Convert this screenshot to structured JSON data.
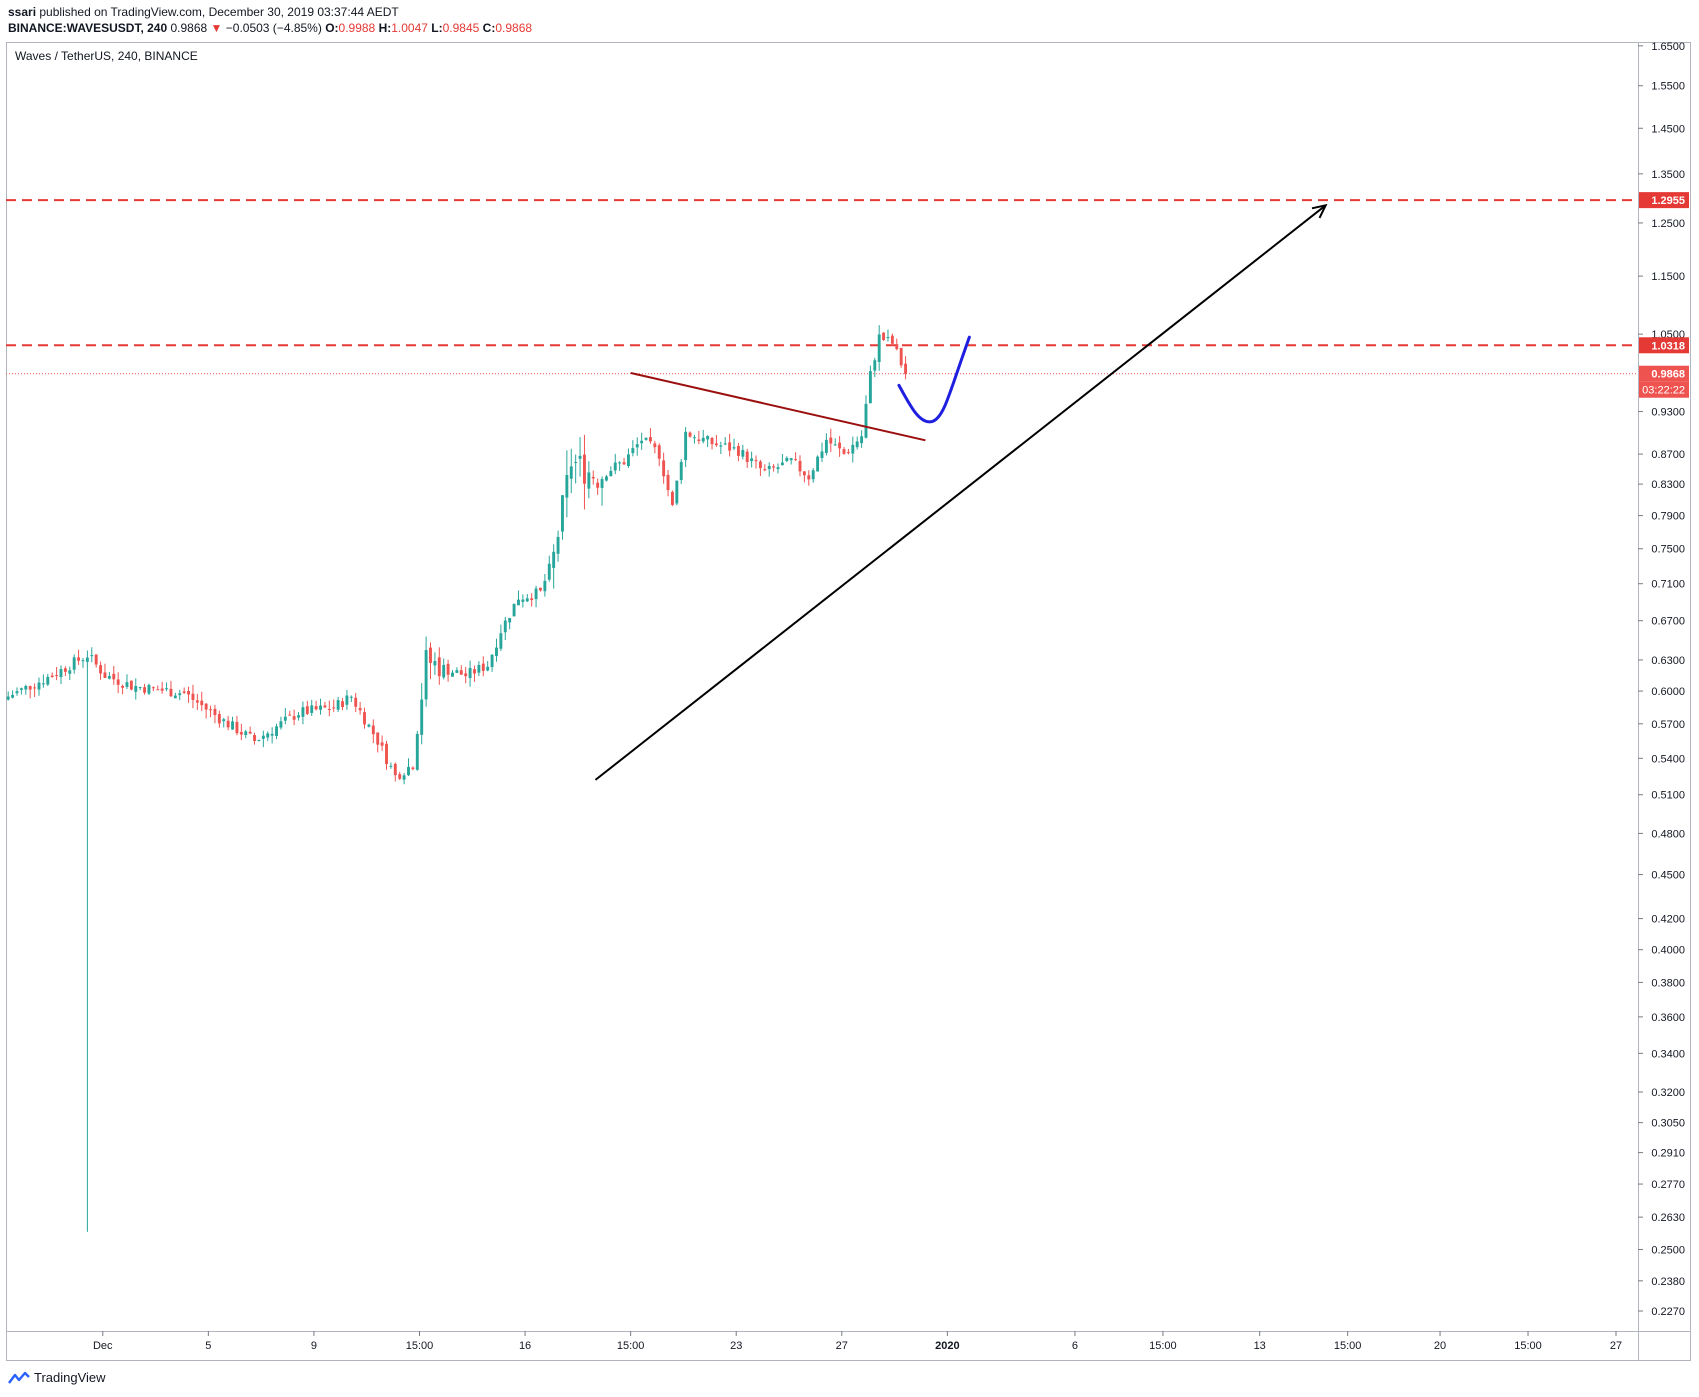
{
  "header": {
    "author": "ssari",
    "published_text": "published on TradingView.com, December 30, 2019 03:37:44 AEDT",
    "symbol_line": "BINANCE:WAVESUSDT, 240",
    "last": "0.9868",
    "change_arrow": "▼",
    "change": "−0.0503 (−4.85%)",
    "o_label": "O:",
    "o": "0.9988",
    "h_label": "H:",
    "h": "1.0047",
    "l_label": "L:",
    "l": "0.9845",
    "c_label": "C:",
    "c": "0.9868"
  },
  "legend_title": "Waves / TetherUS, 240, BINANCE",
  "footer": {
    "brand": "TradingView",
    "icon": "tradingview-logo-icon"
  },
  "colors": {
    "up": "#26a69a",
    "down": "#ef5350",
    "level_line": "#e53935",
    "trend_line": "#9b0f0f",
    "arrow": "#000000",
    "projection": "#1f1fe0",
    "axis_text": "#131722",
    "current_label_bg": "#ef5350"
  },
  "chart_data": {
    "type": "candlestick",
    "scale": "log",
    "ylim": [
      0.22,
      1.66
    ],
    "y_ticks": [
      "1.6500",
      "1.5500",
      "1.4500",
      "1.3500",
      "1.2500",
      "1.1500",
      "1.0500",
      "0.9300",
      "0.8700",
      "0.8300",
      "0.7900",
      "0.7500",
      "0.7100",
      "0.6700",
      "0.6300",
      "0.6000",
      "0.5700",
      "0.5400",
      "0.5100",
      "0.4800",
      "0.4500",
      "0.4200",
      "0.4000",
      "0.3800",
      "0.3600",
      "0.3400",
      "0.3200",
      "0.3050",
      "0.2910",
      "0.2770",
      "0.2630",
      "0.2500",
      "0.2380",
      "0.2270"
    ],
    "x_ticks": [
      "Dec",
      "5",
      "9",
      "15:00",
      "16",
      "15:00",
      "23",
      "27",
      "2020",
      "6",
      "15:00",
      "13",
      "15:00",
      "20",
      "15:00",
      "27"
    ],
    "x_domain_bars": [
      0,
      371
    ],
    "x_tick_bars": [
      22,
      46,
      70,
      94,
      118,
      142,
      166,
      190,
      214,
      243,
      263,
      285,
      305,
      326,
      346,
      366
    ],
    "price_labels": [
      {
        "name": "upper-resistance",
        "value": 1.2955,
        "text": "1.2955"
      },
      {
        "name": "lower-resistance",
        "value": 1.0318,
        "text": "1.0318"
      },
      {
        "name": "current-price",
        "value": 0.9868,
        "text": "0.9868"
      }
    ],
    "countdown": "03:22:22",
    "anchors": [
      {
        "bar": 0,
        "price": 0.595
      },
      {
        "bar": 10,
        "price": 0.615
      },
      {
        "bar": 18,
        "price": 0.635
      },
      {
        "bar": 22,
        "price": 0.615
      },
      {
        "bar": 28,
        "price": 0.605
      },
      {
        "bar": 40,
        "price": 0.598
      },
      {
        "bar": 48,
        "price": 0.575
      },
      {
        "bar": 56,
        "price": 0.555
      },
      {
        "bar": 66,
        "price": 0.58
      },
      {
        "bar": 74,
        "price": 0.585
      },
      {
        "bar": 78,
        "price": 0.595
      },
      {
        "bar": 84,
        "price": 0.555
      },
      {
        "bar": 88,
        "price": 0.525
      },
      {
        "bar": 92,
        "price": 0.535
      },
      {
        "bar": 95,
        "price": 0.63
      },
      {
        "bar": 100,
        "price": 0.62
      },
      {
        "bar": 104,
        "price": 0.615
      },
      {
        "bar": 109,
        "price": 0.625
      },
      {
        "bar": 112,
        "price": 0.66
      },
      {
        "bar": 116,
        "price": 0.695
      },
      {
        "bar": 121,
        "price": 0.7
      },
      {
        "bar": 124,
        "price": 0.74
      },
      {
        "bar": 128,
        "price": 0.86
      },
      {
        "bar": 134,
        "price": 0.84
      },
      {
        "bar": 140,
        "price": 0.86
      },
      {
        "bar": 144,
        "price": 0.89
      },
      {
        "bar": 148,
        "price": 0.87
      },
      {
        "bar": 151,
        "price": 0.8
      },
      {
        "bar": 154,
        "price": 0.9
      },
      {
        "bar": 160,
        "price": 0.885
      },
      {
        "bar": 166,
        "price": 0.875
      },
      {
        "bar": 172,
        "price": 0.845
      },
      {
        "bar": 178,
        "price": 0.86
      },
      {
        "bar": 182,
        "price": 0.84
      },
      {
        "bar": 186,
        "price": 0.89
      },
      {
        "bar": 190,
        "price": 0.87
      },
      {
        "bar": 194,
        "price": 0.895
      },
      {
        "bar": 196,
        "price": 0.985
      },
      {
        "bar": 198,
        "price": 1.045
      },
      {
        "bar": 201,
        "price": 1.035
      },
      {
        "bar": 204,
        "price": 0.9868
      }
    ],
    "spike_low": {
      "bar": 18,
      "price": 0.257
    },
    "drawings": {
      "trend_line": {
        "from": {
          "bar": 142,
          "price": 0.988
        },
        "to": {
          "bar": 209,
          "price": 0.889
        }
      },
      "arrow": {
        "from": {
          "bar": 134,
          "price": 0.522
        },
        "to": {
          "bar": 300,
          "price": 1.285
        }
      },
      "projection": [
        {
          "bar": 203,
          "price": 0.969
        },
        {
          "bar": 205,
          "price": 0.945
        },
        {
          "bar": 207,
          "price": 0.925
        },
        {
          "bar": 209,
          "price": 0.915
        },
        {
          "bar": 211,
          "price": 0.915
        },
        {
          "bar": 213,
          "price": 0.93
        },
        {
          "bar": 215,
          "price": 0.965
        },
        {
          "bar": 217,
          "price": 1.005
        },
        {
          "bar": 219,
          "price": 1.045
        }
      ]
    }
  }
}
